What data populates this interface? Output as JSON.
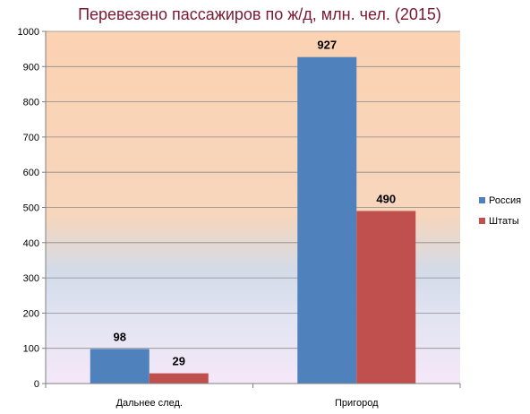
{
  "chart_data": {
    "type": "bar",
    "title": "Перевезено пассажиров по ж/д, млн. чел. (2015)",
    "categories": [
      "Дальнее след.",
      "Пригород"
    ],
    "series": [
      {
        "name": "Россия",
        "values": [
          98,
          927
        ],
        "color": "#4f81bd"
      },
      {
        "name": "Штаты",
        "values": [
          29,
          490
        ],
        "color": "#c0504d"
      }
    ],
    "ylim": [
      0,
      1000
    ],
    "yticks": [
      "0",
      "100",
      "200",
      "300",
      "400",
      "500",
      "600",
      "700",
      "800",
      "900",
      "1000"
    ],
    "data_labels": true,
    "grid": true,
    "legend_position": "right"
  }
}
